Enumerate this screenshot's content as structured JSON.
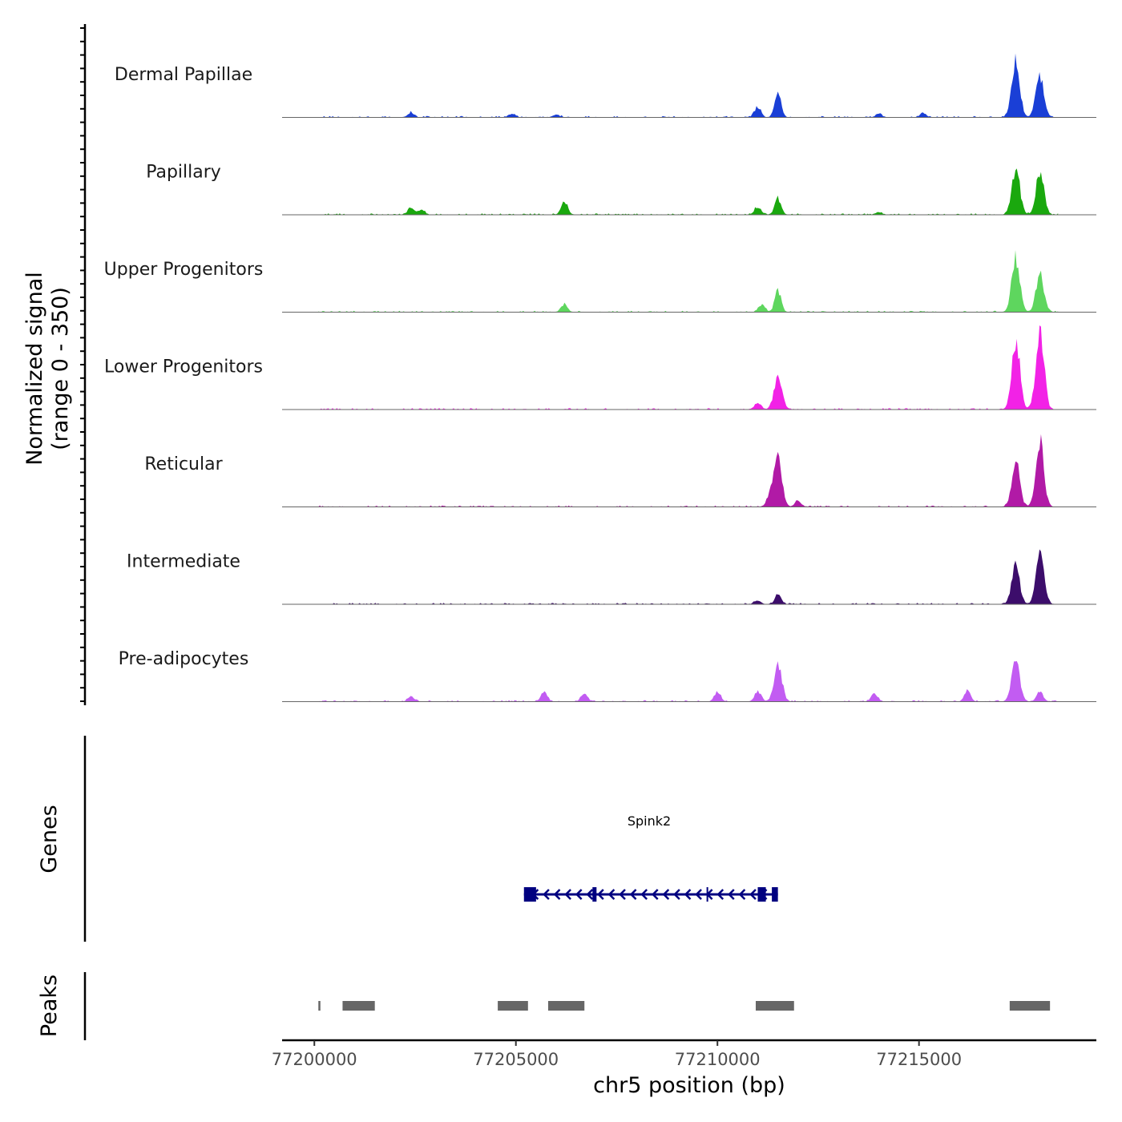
{
  "chart_data": {
    "type": "area",
    "ylabel_line1": "Normalized signal",
    "ylabel_line2": "(range 0 - 350)",
    "xlabel": "chr5 position (bp)",
    "xlim": [
      77199200,
      77219400
    ],
    "ylim": [
      0,
      350
    ],
    "x_ticks": [
      77200000,
      77205000,
      77210000,
      77215000
    ],
    "x_tick_labels": [
      "77200000",
      "77205000",
      "77210000",
      "77215000"
    ],
    "tracks": [
      {
        "name": "Dermal Papillae",
        "color": "#1a3fd6",
        "peaks": [
          [
            77202400,
            20
          ],
          [
            77204900,
            15
          ],
          [
            77206000,
            12
          ],
          [
            77211000,
            45
          ],
          [
            77211500,
            110
          ],
          [
            77214000,
            15
          ],
          [
            77215100,
            18
          ],
          [
            77217400,
            240
          ],
          [
            77218000,
            170
          ]
        ]
      },
      {
        "name": "Papillary",
        "color": "#1aa80e",
        "peaks": [
          [
            77202400,
            30
          ],
          [
            77202650,
            20
          ],
          [
            77206200,
            55
          ],
          [
            77211000,
            35
          ],
          [
            77211500,
            70
          ],
          [
            77214000,
            10
          ],
          [
            77217400,
            200
          ],
          [
            77218000,
            180
          ]
        ]
      },
      {
        "name": "Upper Progenitors",
        "color": "#5ed65e",
        "peaks": [
          [
            77206200,
            35
          ],
          [
            77211100,
            30
          ],
          [
            77211500,
            95
          ],
          [
            77217400,
            230
          ],
          [
            77218000,
            155
          ]
        ]
      },
      {
        "name": "Lower Progenitors",
        "color": "#f222e6",
        "peaks": [
          [
            77211000,
            30
          ],
          [
            77211500,
            135
          ],
          [
            77217400,
            300
          ],
          [
            77218000,
            345
          ]
        ]
      },
      {
        "name": "Reticular",
        "color": "#b11aa6",
        "peaks": [
          [
            77211300,
            45
          ],
          [
            77211500,
            205
          ],
          [
            77212000,
            25
          ],
          [
            77217400,
            190
          ],
          [
            77218000,
            275
          ]
        ]
      },
      {
        "name": "Intermediate",
        "color": "#3c0d6b",
        "peaks": [
          [
            77211000,
            15
          ],
          [
            77211500,
            40
          ],
          [
            77217400,
            155
          ],
          [
            77218000,
            205
          ]
        ]
      },
      {
        "name": "Pre-adipocytes",
        "color": "#c25cf2",
        "peaks": [
          [
            77202400,
            20
          ],
          [
            77205700,
            40
          ],
          [
            77206700,
            35
          ],
          [
            77210000,
            40
          ],
          [
            77211000,
            45
          ],
          [
            77211500,
            150
          ],
          [
            77213900,
            35
          ],
          [
            77216200,
            45
          ],
          [
            77217400,
            175
          ],
          [
            77218000,
            40
          ]
        ]
      }
    ]
  },
  "genes": {
    "label": "Genes",
    "gene_name": "Spink2",
    "start": 77205200,
    "end": 77211500,
    "strand": "-",
    "color": "#000080",
    "exons": [
      [
        77205200,
        77205500
      ],
      [
        77206900,
        77207000
      ],
      [
        77211000,
        77211200
      ],
      [
        77211350,
        77211500
      ]
    ]
  },
  "peaks_track": {
    "label": "Peaks",
    "color": "#666666",
    "regions": [
      [
        77200100,
        77200150
      ],
      [
        77200700,
        77201500
      ],
      [
        77204550,
        77205300
      ],
      [
        77205800,
        77206700
      ],
      [
        77210950,
        77211900
      ],
      [
        77217250,
        77218250
      ]
    ]
  }
}
